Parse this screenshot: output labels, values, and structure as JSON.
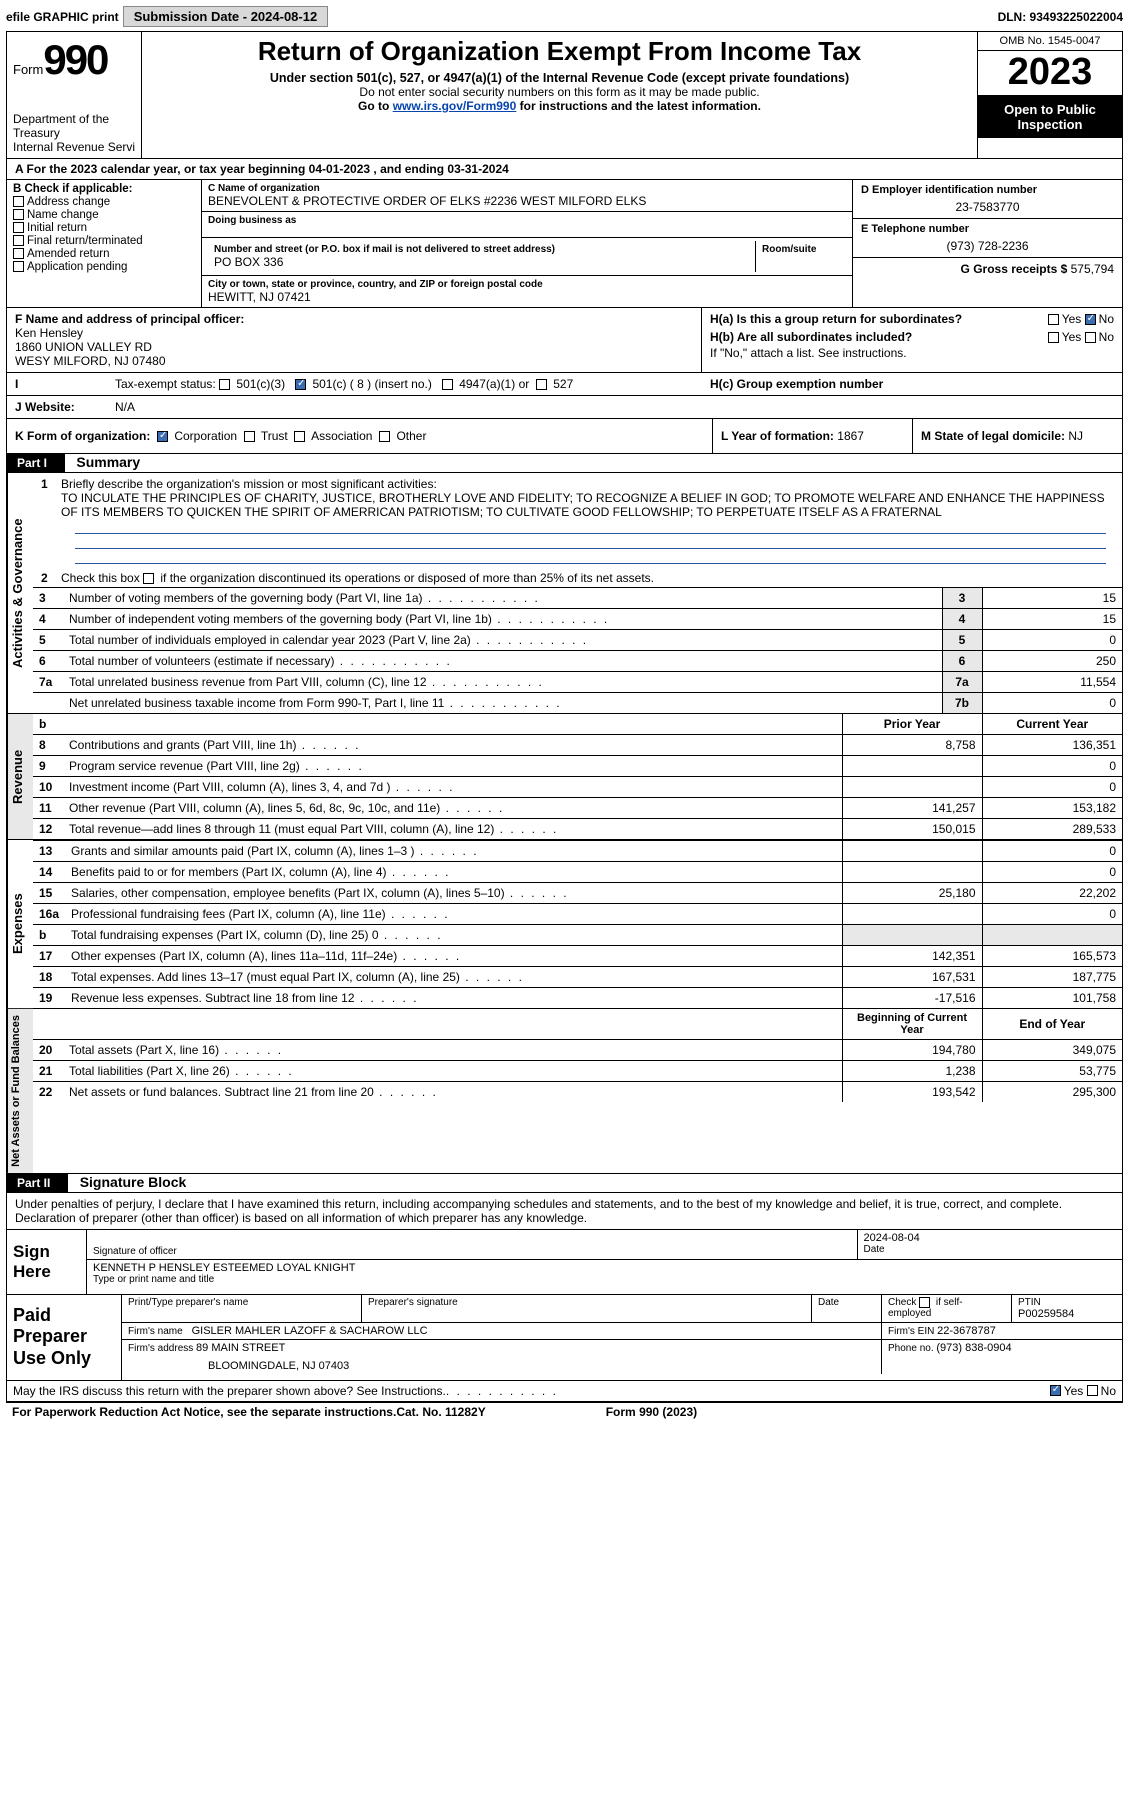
{
  "topbar": {
    "efile": "efile GRAPHIC print",
    "subdate_label": "Submission Date - 2024-08-12",
    "dln": "DLN: 93493225022004"
  },
  "header": {
    "form_word": "Form",
    "form_number": "990",
    "title": "Return of Organization Exempt From Income Tax",
    "sub1": "Under section 501(c), 527, or 4947(a)(1) of the Internal Revenue Code (except private foundations)",
    "sub2": "Do not enter social security numbers on this form as it may be made public.",
    "sub3_pre": "Go to ",
    "sub3_link": "www.irs.gov/Form990",
    "sub3_post": " for instructions and the latest information.",
    "dept": "Department of the Treasury",
    "irs": "Internal Revenue Service",
    "omb": "OMB No. 1545-0047",
    "year": "2023",
    "open": "Open to Public Inspection"
  },
  "rowA": {
    "text_pre": "A For the 2023 calendar year, or tax year beginning ",
    "begin": "04-01-2023",
    "mid": " , and ending ",
    "end": "03-31-2024"
  },
  "colB": {
    "hdr": "B Check if applicable:",
    "items": [
      "Address change",
      "Name change",
      "Initial return",
      "Final return/terminated",
      "Amended return",
      "Application pending"
    ]
  },
  "colC": {
    "name_lbl": "C Name of organization",
    "name_val": "BENEVOLENT & PROTECTIVE ORDER OF ELKS #2236 WEST MILFORD ELKS",
    "dba_lbl": "Doing business as",
    "addr_lbl": "Number and street (or P.O. box if mail is not delivered to street address)",
    "room_lbl": "Room/suite",
    "addr_val": "PO BOX 336",
    "city_lbl": "City or town, state or province, country, and ZIP or foreign postal code",
    "city_val": "HEWITT, NJ  07421"
  },
  "colD": {
    "ein_lbl": "D Employer identification number",
    "ein_val": "23-7583770",
    "tel_lbl": "E Telephone number",
    "tel_val": "(973) 728-2236",
    "gross_lbl": "G Gross receipts $",
    "gross_val": "575,794"
  },
  "rowF": {
    "f_lbl": "F Name and address of principal officer:",
    "f_name": "Ken Hensley",
    "f_addr1": "1860 UNION VALLEY RD",
    "f_addr2": "WESY MILFORD, NJ  07480",
    "ha": "H(a)  Is this a group return for subordinates?",
    "hb": "H(b)  Are all subordinates included?",
    "ha_no": "No",
    "ha_yes": "Yes",
    "hb_yes": "Yes",
    "hb_no": "No",
    "hb_note": "If \"No,\" attach a list. See instructions."
  },
  "rowI": {
    "lbl": "I  Tax-exempt status:",
    "opt1": "501(c)(3)",
    "opt2_a": "501(c) (",
    "opt2_n": "8",
    "opt2_b": ") (insert no.)",
    "opt3": "4947(a)(1) or",
    "opt4": "527",
    "hc": "H(c)  Group exemption number   "
  },
  "rowJ": {
    "lbl": "J   Website:  ",
    "val": "N/A"
  },
  "rowK": {
    "k_pre": "K Form of organization:",
    "k_corp": "Corporation",
    "k_trust": "Trust",
    "k_assoc": "Association",
    "k_other": "Other",
    "l_lbl": "L Year of formation:",
    "l_val": "1867",
    "m_lbl": "M State of legal domicile:",
    "m_val": "NJ"
  },
  "part1": {
    "hdr": "Part I",
    "title": "Summary",
    "q1_pre": "Briefly describe the organization's mission or most significant activities:",
    "q1_text": "TO INCULATE THE PRINCIPLES OF CHARITY, JUSTICE, BROTHERLY LOVE AND FIDELITY; TO RECOGNIZE A BELIEF IN GOD; TO PROMOTE WELFARE AND ENHANCE THE HAPPINESS OF ITS MEMBERS TO QUICKEN THE SPIRIT OF AMERRICAN PATRIOTISM; TO CULTIVATE GOOD FELLOWSHIP; TO PERPETUATE ITSELF AS A FRATERNAL",
    "q2": "Check this box       if the organization discontinued its operations or disposed of more than 25% of its net assets.",
    "lines_ag": [
      {
        "n": "3",
        "d": "Number of voting members of the governing body (Part VI, line 1a)",
        "ln": "3",
        "v": "15"
      },
      {
        "n": "4",
        "d": "Number of independent voting members of the governing body (Part VI, line 1b)",
        "ln": "4",
        "v": "15"
      },
      {
        "n": "5",
        "d": "Total number of individuals employed in calendar year 2023 (Part V, line 2a)",
        "ln": "5",
        "v": "0"
      },
      {
        "n": "6",
        "d": "Total number of volunteers (estimate if necessary)",
        "ln": "6",
        "v": "250"
      },
      {
        "n": "7a",
        "d": "Total unrelated business revenue from Part VIII, column (C), line 12",
        "ln": "7a",
        "v": "11,554"
      },
      {
        "n": "",
        "d": "Net unrelated business taxable income from Form 990-T, Part I, line 11",
        "ln": "7b",
        "v": "0"
      }
    ],
    "hdr_b": "b",
    "prior": "Prior Year",
    "current": "Current Year",
    "rev": [
      {
        "n": "8",
        "d": "Contributions and grants (Part VIII, line 1h)",
        "p": "8,758",
        "c": "136,351"
      },
      {
        "n": "9",
        "d": "Program service revenue (Part VIII, line 2g)",
        "p": "",
        "c": "0"
      },
      {
        "n": "10",
        "d": "Investment income (Part VIII, column (A), lines 3, 4, and 7d )",
        "p": "",
        "c": "0"
      },
      {
        "n": "11",
        "d": "Other revenue (Part VIII, column (A), lines 5, 6d, 8c, 9c, 10c, and 11e)",
        "p": "141,257",
        "c": "153,182"
      },
      {
        "n": "12",
        "d": "Total revenue—add lines 8 through 11 (must equal Part VIII, column (A), line 12)",
        "p": "150,015",
        "c": "289,533"
      }
    ],
    "exp": [
      {
        "n": "13",
        "d": "Grants and similar amounts paid (Part IX, column (A), lines 1–3 )",
        "p": "",
        "c": "0"
      },
      {
        "n": "14",
        "d": "Benefits paid to or for members (Part IX, column (A), line 4)",
        "p": "",
        "c": "0"
      },
      {
        "n": "15",
        "d": "Salaries, other compensation, employee benefits (Part IX, column (A), lines 5–10)",
        "p": "25,180",
        "c": "22,202"
      },
      {
        "n": "16a",
        "d": "Professional fundraising fees (Part IX, column (A), line 11e)",
        "p": "",
        "c": "0"
      },
      {
        "n": "b",
        "d": "Total fundraising expenses (Part IX, column (D), line 25) 0",
        "p": "___SHADE___",
        "c": "___SHADE___"
      },
      {
        "n": "17",
        "d": "Other expenses (Part IX, column (A), lines 11a–11d, 11f–24e)",
        "p": "142,351",
        "c": "165,573"
      },
      {
        "n": "18",
        "d": "Total expenses. Add lines 13–17 (must equal Part IX, column (A), line 25)",
        "p": "167,531",
        "c": "187,775"
      },
      {
        "n": "19",
        "d": "Revenue less expenses. Subtract line 18 from line 12",
        "p": "-17,516",
        "c": "101,758"
      }
    ],
    "boy": "Beginning of Current Year",
    "eoy": "End of Year",
    "na": [
      {
        "n": "20",
        "d": "Total assets (Part X, line 16)",
        "p": "194,780",
        "c": "349,075"
      },
      {
        "n": "21",
        "d": "Total liabilities (Part X, line 26)",
        "p": "1,238",
        "c": "53,775"
      },
      {
        "n": "22",
        "d": "Net assets or fund balances. Subtract line 21 from line 20",
        "p": "193,542",
        "c": "295,300"
      }
    ],
    "vtab_ag": "Activities & Governance",
    "vtab_rev": "Revenue",
    "vtab_exp": "Expenses",
    "vtab_na": "Net Assets or Fund Balances"
  },
  "part2": {
    "hdr": "Part II",
    "title": "Signature Block",
    "intro": "Under penalties of perjury, I declare that I have examined this return, including accompanying schedules and statements, and to the best of my knowledge and belief, it is true, correct, and complete. Declaration of preparer (other than officer) is based on all information of which preparer has any knowledge."
  },
  "sign": {
    "left": "Sign Here",
    "sig_lbl": "Signature of officer",
    "date_lbl": "Date",
    "date_val": "2024-08-04",
    "name_val": "KENNETH P HENSLEY ESTEEMED LOYAL KNIGHT",
    "name_lbl": "Type or print name and title"
  },
  "prep": {
    "left": "Paid Preparer Use Only",
    "pt_lbl": "Print/Type preparer's name",
    "ps_lbl": "Preparer's signature",
    "dt_lbl": "Date",
    "chk_lbl": "Check         if self-employed",
    "ptin_lbl": "PTIN",
    "ptin_val": "P00259584",
    "firm_name_lbl": "Firm's name   ",
    "firm_name_val": "GISLER MAHLER LAZOFF & SACHAROW LLC",
    "firm_ein_lbl": "Firm's EIN  ",
    "firm_ein_val": "22-3678787",
    "firm_addr_lbl": "Firm's address ",
    "firm_addr_val1": "89 MAIN STREET",
    "firm_addr_val2": "BLOOMINGDALE, NJ  07403",
    "phone_lbl": "Phone no. ",
    "phone_val": "(973) 838-0904"
  },
  "footer": {
    "discuss": "May the IRS discuss this return with the preparer shown above? See Instructions.",
    "yes": "Yes",
    "no": "No",
    "paperwork": "For Paperwork Reduction Act Notice, see the separate instructions.",
    "cat": "Cat. No. 11282Y",
    "form": "Form 990 (2023)"
  }
}
